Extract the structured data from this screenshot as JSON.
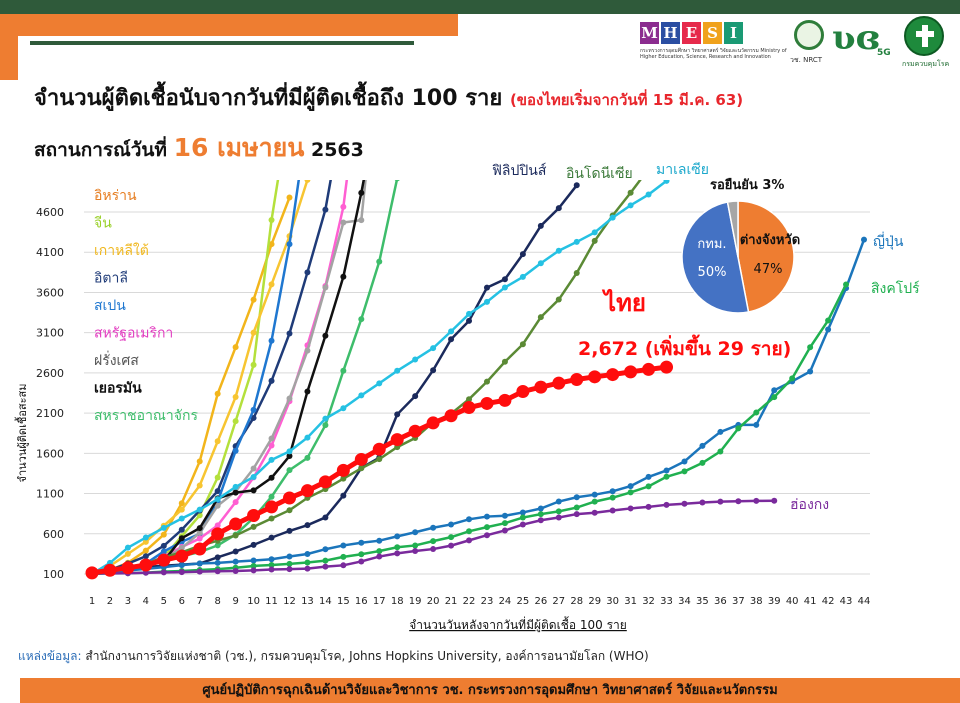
{
  "title": {
    "main": "จำนวนผู้ติดเชื้อนับจากวันที่มีผู้ติดเชื้อถึง 100 ราย",
    "note": "(ของไทยเริ่มจากวันที่ 15 มี.ค. 63)"
  },
  "status": {
    "prefix": "สถานการณ์วันที่",
    "date": "16 เมษายน",
    "year": "2563"
  },
  "logos": {
    "mhesi_letters": [
      "M",
      "H",
      "E",
      "S",
      "I"
    ],
    "mhesi_colors": [
      "#8b2c8f",
      "#2b4ea2",
      "#e62a4b",
      "#f0a21c",
      "#1a9a74"
    ],
    "mhesi_caption": "กระทรวงการอุดมศึกษา วิทยาศาสตร์ วิจัยและนวัตกรรม Ministry of Higher Education, Science, Research and Innovation",
    "nrct_caption": "วช. NRCT",
    "fiveg_text": "5G",
    "ddc_caption": "กรมควบคุมโรค"
  },
  "thailand_callout": {
    "name": "ไทย",
    "detail": "2,672 (เพิ่มขึ้น 29 ราย)"
  },
  "pie": {
    "title": "รอยืนยัน 3%",
    "slices": [
      {
        "label": "ต่างจังหวัด",
        "value": 47,
        "text": "47%",
        "color": "#ee7d31"
      },
      {
        "label": "กทม.",
        "value": 50,
        "text": "50%",
        "color": "#4472c4"
      },
      {
        "label": "รอยืนยัน",
        "value": 3,
        "text": "",
        "color": "#a6a6a6"
      }
    ]
  },
  "chart_data": {
    "type": "line",
    "ylabel": "จำนวนผู้ติดเชื้อสะสม",
    "xlabel": "จำนวนวันหลังจากวันที่มีผู้ติดเชื้อ 100 ราย",
    "y_ticks": [
      100,
      600,
      1100,
      1600,
      2100,
      2600,
      3100,
      3600,
      4100,
      4600
    ],
    "x_ticks": [
      1,
      2,
      3,
      4,
      5,
      6,
      7,
      8,
      9,
      10,
      11,
      12,
      13,
      14,
      15,
      16,
      17,
      18,
      19,
      20,
      21,
      22,
      23,
      24,
      25,
      26,
      27,
      28,
      29,
      30,
      31,
      32,
      33,
      34,
      35,
      36,
      37,
      38,
      39,
      40,
      41,
      42,
      43,
      44
    ],
    "ylim": [
      100,
      4600
    ],
    "xlim": [
      1,
      44
    ],
    "series": [
      {
        "name": "อิหร่าน",
        "color": "#f2b51b",
        "labelColor": "#e67e22",
        "values": [
          100,
          150,
          240,
          390,
          590,
          980,
          1500,
          2340,
          2920,
          3510,
          4200,
          4780
        ]
      },
      {
        "name": "จีน",
        "color": "#b4e03c",
        "labelColor": "#9ad02a",
        "values": [
          100,
          120,
          140,
          200,
          310,
          570,
          830,
          1300,
          2000,
          2700,
          4500,
          5900
        ]
      },
      {
        "name": "เกาหลีใต้",
        "color": "#f7c531",
        "labelColor": "#f0b820",
        "values": [
          100,
          200,
          350,
          500,
          700,
          900,
          1200,
          1750,
          2300,
          3100,
          3700,
          4300,
          5000
        ]
      },
      {
        "name": "อิตาลี",
        "color": "#1f3b78",
        "labelColor": "#1f3b78",
        "values": [
          100,
          150,
          230,
          320,
          450,
          650,
          890,
          1130,
          1690,
          2040,
          2500,
          3090,
          3850,
          4630,
          5880
        ]
      },
      {
        "name": "สเปน",
        "color": "#1f77d0",
        "labelColor": "#1f77d0",
        "values": [
          100,
          120,
          170,
          230,
          380,
          500,
          600,
          1000,
          1630,
          2140,
          3000,
          4200,
          5750
        ]
      },
      {
        "name": "สหรัฐอเมริกา",
        "color": "#ff5fd2",
        "labelColor": "#e23cc0",
        "values": [
          100,
          124,
          158,
          221,
          319,
          435,
          541,
          704,
          994,
          1301,
          1697,
          2247,
          2943,
          3680,
          4663,
          6411
        ]
      },
      {
        "name": "ฝรั่งเศส",
        "color": "#a3a3a3",
        "labelColor": "#555555",
        "values": [
          100,
          130,
          191,
          212,
          285,
          423,
          613,
          949,
          1126,
          1412,
          1784,
          2281,
          2876,
          3661,
          4469,
          4499,
          6633
        ]
      },
      {
        "name": "เยอรมัน",
        "color": "#111111",
        "labelColor": "#111111",
        "values": [
          100,
          130,
          165,
          203,
          262,
          545,
          670,
          1040,
          1112,
          1139,
          1296,
          1567,
          2369,
          3062,
          3795,
          4838,
          6012
        ]
      },
      {
        "name": "สหราชอาณาจักร",
        "color": "#3ebd6b",
        "labelColor": "#3ebd6b",
        "values": [
          100,
          115,
          160,
          206,
          271,
          321,
          373,
          456,
          590,
          797,
          1061,
          1391,
          1543,
          1950,
          2626,
          3269,
          3983,
          5018
        ]
      },
      {
        "name": "ฟิลิปปินส์",
        "color": "#1b2a5c",
        "labelColor": "#1b2a5c",
        "values": [
          100,
          140,
          142,
          187,
          202,
          217,
          230,
          307,
          380,
          462,
          552,
          636,
          707,
          803,
          1075,
          1418,
          1546,
          2084,
          2311,
          2633,
          3018,
          3246,
          3660,
          3764,
          4076,
          4428,
          4648,
          4932
        ]
      },
      {
        "name": "อินโดนีเซีย",
        "color": "#5b8a35",
        "labelColor": "#3c7a3a",
        "values": [
          100,
          134,
          172,
          227,
          309,
          369,
          450,
          514,
          579,
          686,
          790,
          893,
          1046,
          1155,
          1285,
          1414,
          1528,
          1677,
          1790,
          1986,
          2092,
          2273,
          2491,
          2738,
          2956,
          3293,
          3512,
          3842,
          4241,
          4557,
          4839,
          5136
        ]
      },
      {
        "name": "มาเลเซีย",
        "color": "#25c1e3",
        "labelColor": "#1ba8cc",
        "values": [
          100,
          238,
          428,
          553,
          673,
          790,
          900,
          1030,
          1183,
          1306,
          1518,
          1624,
          1796,
          2031,
          2161,
          2320,
          2470,
          2626,
          2766,
          2908,
          3116,
          3333,
          3483,
          3662,
          3793,
          3963,
          4119,
          4228,
          4346,
          4530,
          4683,
          4817,
          4987
        ]
      },
      {
        "name": "ไทย",
        "color": "#ff0d0d",
        "labelColor": "#ff0d0d",
        "values": [
          114,
          147,
          177,
          212,
          272,
          322,
          411,
          599,
          721,
          827,
          934,
          1045,
          1136,
          1245,
          1388,
          1524,
          1651,
          1771,
          1875,
          1978,
          2067,
          2169,
          2220,
          2258,
          2369,
          2423,
          2473,
          2518,
          2551,
          2579,
          2613,
          2643,
          2672
        ]
      },
      {
        "name": "ญี่ปุ่น",
        "color": "#1b75bb",
        "labelColor": "#1b75bb",
        "values": [
          105,
          132,
          144,
          164,
          186,
          210,
          230,
          239,
          254,
          268,
          284,
          317,
          349,
          408,
          455,
          488,
          514,
          568,
          619,
          675,
          716,
          780,
          814,
          824,
          865,
          914,
          1001,
          1054,
          1086,
          1128,
          1193,
          1307,
          1387,
          1499,
          1693,
          1866,
          1953,
          1953,
          2384,
          2495,
          2617,
          3139,
          3654,
          4257
        ]
      },
      {
        "name": "สิงคโปร์",
        "color": "#20b050",
        "labelColor": "#20b050",
        "values": [
          102,
          108,
          110,
          117,
          130,
          138,
          150,
          160,
          178,
          200,
          212,
          226,
          243,
          266,
          313,
          345,
          385,
          432,
          455,
          509,
          558,
          631,
          683,
          732,
          802,
          844,
          879,
          926,
          1000,
          1049,
          1114,
          1189,
          1309,
          1375,
          1481,
          1623,
          1910,
          2108,
          2299,
          2532,
          2918,
          3252,
          3699
        ]
      },
      {
        "name": "ฮ่องกง",
        "color": "#7a2a9c",
        "labelColor": "#7a2a9c",
        "values": [
          104,
          107,
          110,
          115,
          120,
          123,
          129,
          134,
          138,
          145,
          156,
          160,
          167,
          192,
          208,
          256,
          317,
          356,
          386,
          410,
          453,
          518,
          582,
          641,
          715,
          768,
          802,
          845,
          862,
          890,
          915,
          935,
          960,
          973,
          989,
          1000,
          1004,
          1009,
          1010
        ]
      }
    ]
  },
  "annotations": {
    "source_label": "แหล่งข้อมูล:",
    "source_text": "สำนักงานการวิจัยแห่งชาติ (วช.), กรมควบคุมโรค, Johns Hopkins University, องค์การอนามัยโลก (WHO)",
    "footer": "ศูนย์ปฏิบัติการฉุกเฉินด้านวิจัยและวิชาการ   วช.   กระทรวงการอุดมศึกษา วิทยาศาสตร์ วิจัยและนวัตกรรม"
  }
}
